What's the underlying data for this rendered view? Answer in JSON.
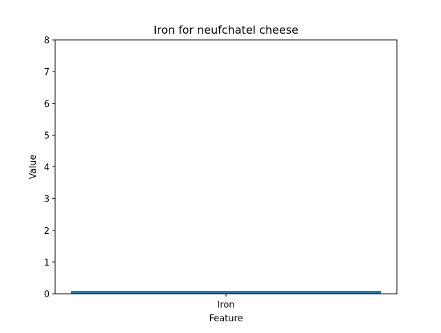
{
  "chart_data": {
    "type": "bar",
    "title": "Iron for neufchatel cheese",
    "xlabel": "Feature",
    "ylabel": "Value",
    "categories": [
      "Iron"
    ],
    "values": [
      0.07
    ],
    "ylim": [
      0,
      8
    ],
    "yticks": [
      "0",
      "1",
      "2",
      "3",
      "4",
      "5",
      "6",
      "7",
      "8"
    ],
    "bar_color": "#1f77b4",
    "grid": false
  }
}
